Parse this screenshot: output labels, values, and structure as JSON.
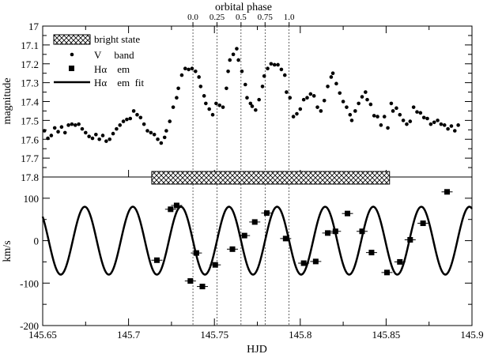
{
  "chart_data": [
    {
      "type": "scatter",
      "title": "orbital phase",
      "top_axis_ticks": [
        {
          "label": "0.0",
          "hjd": 145.7375
        },
        {
          "label": "0.25",
          "hjd": 145.7515
        },
        {
          "label": "0.5",
          "hjd": 145.7655
        },
        {
          "label": "0.75",
          "hjd": 145.7795
        },
        {
          "label": "1.0",
          "hjd": 145.7935
        }
      ],
      "xlabel": "",
      "ylabel": "magnitude",
      "xlim": [
        145.65,
        145.9
      ],
      "ylim": [
        17.8,
        17.0
      ],
      "y_inverted": true,
      "yticks": [
        "17",
        "17.1",
        "17.2",
        "17.3",
        "17.4",
        "17.5",
        "17.6",
        "17.7",
        "17.8"
      ],
      "legend": [
        {
          "label": "bright state",
          "marker": "hatched-box"
        },
        {
          "label": "V     band",
          "marker": "dot"
        },
        {
          "label": "Hα    em",
          "marker": "square"
        },
        {
          "label": "Hα    em  fit",
          "marker": "line"
        }
      ],
      "bright_state": {
        "x_start": 145.7135,
        "x_end": 145.852
      },
      "series": [
        {
          "name": "V     band",
          "points": [
            [
              145.651,
              17.555
            ],
            [
              145.653,
              17.595
            ],
            [
              145.655,
              17.58
            ],
            [
              145.657,
              17.54
            ],
            [
              145.659,
              17.56
            ],
            [
              145.661,
              17.535
            ],
            [
              145.663,
              17.565
            ],
            [
              145.665,
              17.525
            ],
            [
              145.667,
              17.52
            ],
            [
              145.669,
              17.525
            ],
            [
              145.671,
              17.52
            ],
            [
              145.673,
              17.545
            ],
            [
              145.675,
              17.565
            ],
            [
              145.677,
              17.585
            ],
            [
              145.679,
              17.595
            ],
            [
              145.681,
              17.575
            ],
            [
              145.683,
              17.6
            ],
            [
              145.685,
              17.58
            ],
            [
              145.687,
              17.61
            ],
            [
              145.689,
              17.6
            ],
            [
              145.691,
              17.57
            ],
            [
              145.693,
              17.545
            ],
            [
              145.695,
              17.525
            ],
            [
              145.697,
              17.505
            ],
            [
              145.699,
              17.495
            ],
            [
              145.701,
              17.49
            ],
            [
              145.703,
              17.45
            ],
            [
              145.705,
              17.47
            ],
            [
              145.707,
              17.485
            ],
            [
              145.709,
              17.52
            ],
            [
              145.711,
              17.555
            ],
            [
              145.713,
              17.565
            ],
            [
              145.715,
              17.575
            ],
            [
              145.717,
              17.6
            ],
            [
              145.719,
              17.62
            ],
            [
              145.721,
              17.59
            ],
            [
              145.722,
              17.555
            ],
            [
              145.724,
              17.505
            ],
            [
              145.726,
              17.43
            ],
            [
              145.728,
              17.38
            ],
            [
              145.729,
              17.33
            ],
            [
              145.731,
              17.26
            ],
            [
              145.733,
              17.225
            ],
            [
              145.735,
              17.23
            ],
            [
              145.737,
              17.225
            ],
            [
              145.739,
              17.24
            ],
            [
              145.741,
              17.27
            ],
            [
              145.742,
              17.32
            ],
            [
              145.744,
              17.37
            ],
            [
              145.745,
              17.41
            ],
            [
              145.747,
              17.44
            ],
            [
              145.749,
              17.47
            ],
            [
              145.751,
              17.41
            ],
            [
              145.753,
              17.42
            ],
            [
              145.755,
              17.43
            ],
            [
              145.757,
              17.33
            ],
            [
              145.758,
              17.24
            ],
            [
              145.759,
              17.18
            ],
            [
              145.761,
              17.15
            ],
            [
              145.763,
              17.12
            ],
            [
              145.764,
              17.18
            ],
            [
              145.766,
              17.24
            ],
            [
              145.768,
              17.31
            ],
            [
              145.769,
              17.38
            ],
            [
              145.771,
              17.41
            ],
            [
              145.772,
              17.425
            ],
            [
              145.774,
              17.445
            ],
            [
              145.776,
              17.39
            ],
            [
              145.778,
              17.32
            ],
            [
              145.779,
              17.265
            ],
            [
              145.781,
              17.225
            ],
            [
              145.783,
              17.2
            ],
            [
              145.785,
              17.205
            ],
            [
              145.787,
              17.205
            ],
            [
              145.789,
              17.23
            ],
            [
              145.791,
              17.26
            ],
            [
              145.792,
              17.35
            ],
            [
              145.794,
              17.38
            ],
            [
              145.796,
              17.48
            ],
            [
              145.798,
              17.465
            ],
            [
              145.8,
              17.44
            ],
            [
              145.802,
              17.39
            ],
            [
              145.804,
              17.38
            ],
            [
              145.806,
              17.36
            ],
            [
              145.808,
              17.37
            ],
            [
              145.81,
              17.43
            ],
            [
              145.812,
              17.45
            ],
            [
              145.814,
              17.395
            ],
            [
              145.816,
              17.32
            ],
            [
              145.818,
              17.27
            ],
            [
              145.819,
              17.25
            ],
            [
              145.821,
              17.305
            ],
            [
              145.823,
              17.355
            ],
            [
              145.825,
              17.4
            ],
            [
              145.827,
              17.43
            ],
            [
              145.829,
              17.47
            ],
            [
              145.83,
              17.5
            ],
            [
              145.832,
              17.45
            ],
            [
              145.834,
              17.41
            ],
            [
              145.836,
              17.375
            ],
            [
              145.838,
              17.35
            ],
            [
              145.839,
              17.39
            ],
            [
              145.841,
              17.415
            ],
            [
              145.843,
              17.475
            ],
            [
              145.845,
              17.48
            ],
            [
              145.847,
              17.525
            ],
            [
              145.849,
              17.48
            ],
            [
              145.851,
              17.54
            ],
            [
              145.853,
              17.41
            ],
            [
              145.854,
              17.45
            ],
            [
              145.856,
              17.435
            ],
            [
              145.858,
              17.47
            ],
            [
              145.86,
              17.5
            ],
            [
              145.862,
              17.52
            ],
            [
              145.864,
              17.505
            ],
            [
              145.866,
              17.43
            ],
            [
              145.868,
              17.455
            ],
            [
              145.87,
              17.46
            ],
            [
              145.872,
              17.485
            ],
            [
              145.874,
              17.49
            ],
            [
              145.876,
              17.52
            ],
            [
              145.878,
              17.51
            ],
            [
              145.88,
              17.5
            ],
            [
              145.882,
              17.52
            ],
            [
              145.884,
              17.525
            ],
            [
              145.886,
              17.545
            ],
            [
              145.888,
              17.53
            ],
            [
              145.89,
              17.555
            ],
            [
              145.892,
              17.525
            ]
          ]
        }
      ]
    },
    {
      "type": "scatter",
      "xlabel": "HJD",
      "ylabel": "km/s",
      "xlim": [
        145.65,
        145.9
      ],
      "ylim": [
        -200,
        150
      ],
      "xticks": [
        "145.65",
        "145.7",
        "145.75",
        "145.8",
        "145.85",
        "145.9"
      ],
      "yticks": [
        "-200",
        "-100",
        "0",
        "100"
      ],
      "series": [
        {
          "name": "Hα    em",
          "points": [
            [
              145.7165,
              -46
            ],
            [
              145.7245,
              74
            ],
            [
              145.728,
              83
            ],
            [
              145.736,
              -95
            ],
            [
              145.7395,
              -29
            ],
            [
              145.743,
              -108
            ],
            [
              145.7505,
              -57
            ],
            [
              145.7605,
              -20
            ],
            [
              145.7675,
              12
            ],
            [
              145.7735,
              44
            ],
            [
              145.7805,
              65
            ],
            [
              145.7915,
              5
            ],
            [
              145.802,
              -53
            ],
            [
              145.809,
              -49
            ],
            [
              145.816,
              18
            ],
            [
              145.8205,
              22
            ],
            [
              145.8275,
              64
            ],
            [
              145.836,
              22
            ],
            [
              145.8415,
              -28
            ],
            [
              145.8505,
              -75
            ],
            [
              145.858,
              -50
            ],
            [
              145.864,
              2
            ],
            [
              145.8715,
              41
            ],
            [
              145.8855,
              115
            ]
          ]
        },
        {
          "name": "Hα    em  fit",
          "type": "line",
          "model": {
            "amplitude": 80,
            "period": 0.028,
            "phase_zero_hjd": 145.7375,
            "offset": 0
          }
        }
      ]
    }
  ]
}
